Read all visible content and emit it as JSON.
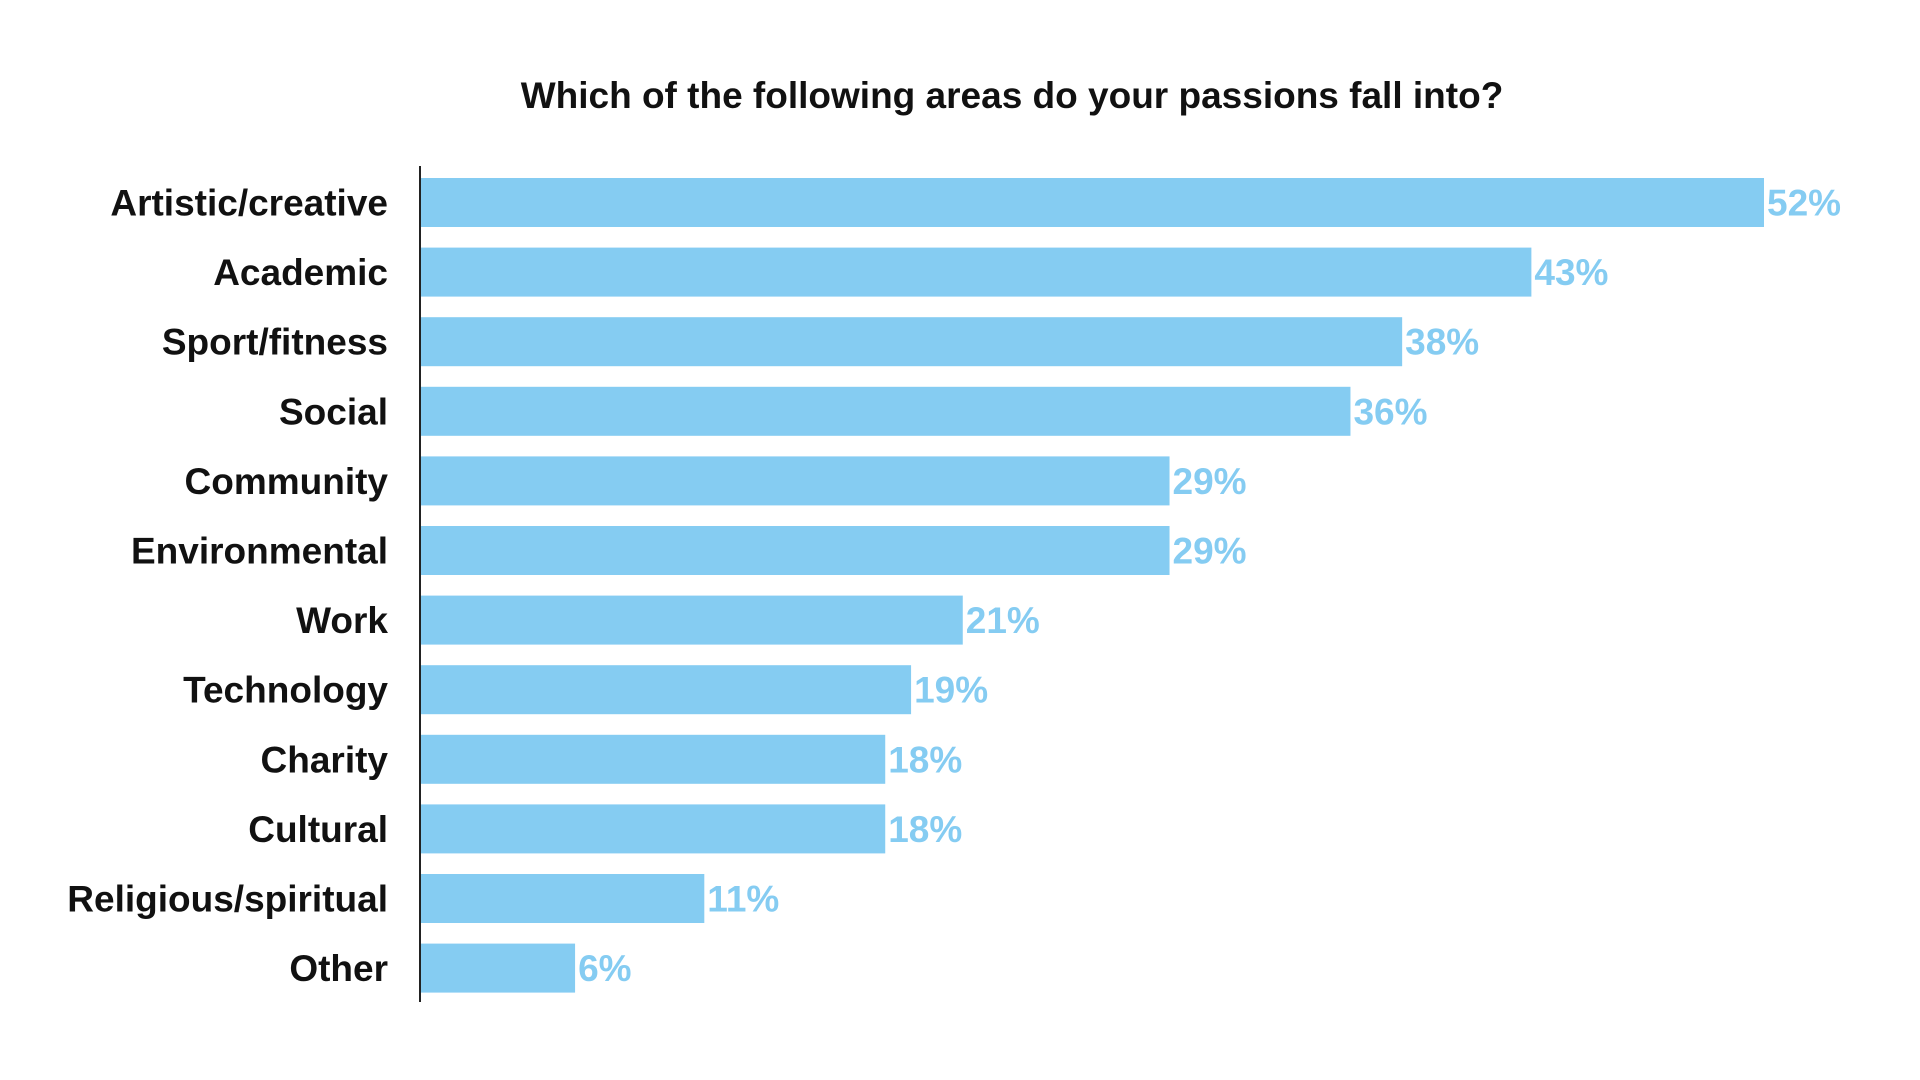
{
  "chart_data": {
    "type": "bar",
    "orientation": "horizontal",
    "title": "Which of the following areas do your passions fall into?",
    "categories": [
      "Artistic/creative",
      "Academic",
      "Sport/fitness",
      "Social",
      "Community",
      "Environmental",
      "Work",
      "Technology",
      "Charity",
      "Cultural",
      "Religious/spiritual",
      "Other"
    ],
    "values": [
      52,
      43,
      38,
      36,
      29,
      29,
      21,
      19,
      18,
      18,
      11,
      6
    ],
    "value_labels": [
      "52%",
      "43%",
      "38%",
      "36%",
      "29%",
      "29%",
      "21%",
      "19%",
      "18%",
      "18%",
      "11%",
      "6%"
    ],
    "xlim": [
      0,
      52
    ],
    "grid": false,
    "legend": "none",
    "bar_color": "#85CCF2",
    "label_color": "#85CCF2",
    "text_color": "#111111",
    "axis_color": "#222222"
  }
}
